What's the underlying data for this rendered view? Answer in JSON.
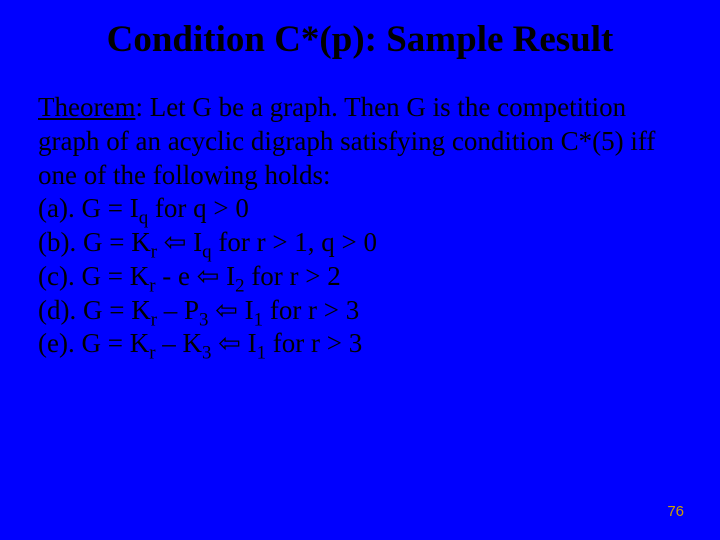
{
  "background_color": "#0000ff",
  "text_color": "#000000",
  "page_number_color": "#cda000",
  "title": {
    "text": "Condition C*(p): Sample Result",
    "fontsize": 37,
    "font_weight": "bold",
    "font_family": "Times New Roman"
  },
  "body": {
    "fontsize": 27,
    "font_family": "Times New Roman",
    "theorem_label": "Theorem",
    "theorem_rest": ": Let  G  be a graph.  Then  G  is the competition graph of an acyclic digraph satisfying condition  C*(5)  iff one of the following holds:",
    "lines": {
      "a_pre": "(a). G = I",
      "a_sub1": "q",
      "a_post": "  for  q  > 0",
      "b_pre": "(b). G = K",
      "b_sub1": "r",
      "b_mid": " ",
      "b_arrow": "⇦",
      "b_mid2": " I",
      "b_sub2": "q",
      "b_post": "  for  r > 1, q > 0",
      "c_pre": "(c). G = K",
      "c_sub1": "r",
      "c_mid": " - e ",
      "c_arrow": "⇦",
      "c_mid2": " I",
      "c_sub2": "2",
      "c_post": "  for r > 2",
      "d_pre": "(d). G = K",
      "d_sub1": "r",
      "d_mid": " – P",
      "d_sub2": "3",
      "d_mid2": " ",
      "d_arrow": "⇦",
      "d_mid3": " I",
      "d_sub3": "1",
      "d_post": "   for  r > 3",
      "e_pre": "(e). G =  K",
      "e_sub1": "r",
      "e_mid": " – K",
      "e_sub2": "3",
      "e_mid2": " ",
      "e_arrow": "⇦",
      "e_mid3": " I",
      "e_sub3": "1",
      "e_post": "  for  r > 3"
    }
  },
  "page_number": {
    "text": "76",
    "fontsize": 15
  }
}
